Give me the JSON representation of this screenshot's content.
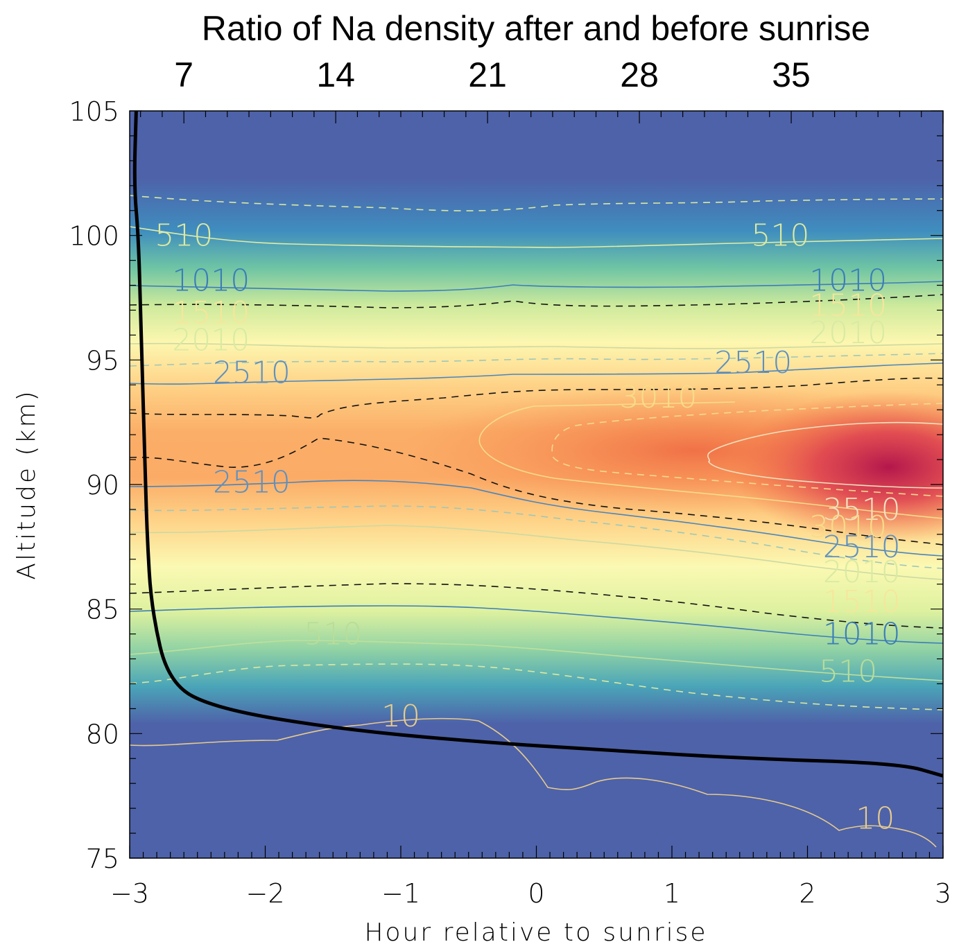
{
  "chart_data": {
    "type": "heatmap",
    "title": "Ratio of Na density after and before sunrise",
    "xlabel": "Hour relative to sunrise",
    "ylabel": "Altitude (km)",
    "xlim": [
      -3,
      3
    ],
    "ylim": [
      75,
      105
    ],
    "x_ticks": [
      "−3",
      "−2",
      "−1",
      "0",
      "1",
      "2",
      "3"
    ],
    "y_ticks": [
      "75",
      "80",
      "85",
      "90",
      "95",
      "100",
      "105"
    ],
    "top_axis_ticks": [
      "7",
      "14",
      "21",
      "28",
      "35"
    ],
    "top_axis_values": [
      7,
      14,
      21,
      28,
      35
    ],
    "colormap": "spectral (blue-green-yellow-orange-red)",
    "colors": {
      "low": "#4e62a9",
      "mid": "#fbf9b3",
      "high": "#b3174c",
      "ratio_line": "#000000"
    },
    "contour_levels": [
      10,
      510,
      1010,
      1510,
      2010,
      2510,
      3010,
      3510
    ],
    "contour_labels": [
      {
        "text": "510",
        "x": -2.6,
        "y": 100.0,
        "color": "#dde9a0"
      },
      {
        "text": "1010",
        "x": -2.4,
        "y": 98.2,
        "color": "#3b7db8"
      },
      {
        "text": "1510",
        "x": -2.4,
        "y": 96.9,
        "color": "#f6e69b"
      },
      {
        "text": "2010",
        "x": -2.4,
        "y": 95.8,
        "color": "#d9eaa3"
      },
      {
        "text": "2510",
        "x": -2.1,
        "y": 94.5,
        "color": "#5f90bf"
      },
      {
        "text": "2510",
        "x": -2.1,
        "y": 90.1,
        "color": "#5f90bf"
      },
      {
        "text": "510",
        "x": -1.5,
        "y": 84.0,
        "color": "#b8dd9a"
      },
      {
        "text": "10",
        "x": -1.0,
        "y": 80.7,
        "color": "#e8cc8d"
      },
      {
        "text": "3010",
        "x": 0.9,
        "y": 93.5,
        "color": "#f7dc8a"
      },
      {
        "text": "510",
        "x": 1.8,
        "y": 100.0,
        "color": "#dde9a0"
      },
      {
        "text": "1010",
        "x": 2.3,
        "y": 98.2,
        "color": "#3b7db8"
      },
      {
        "text": "1510",
        "x": 2.3,
        "y": 97.2,
        "color": "#f6e69b"
      },
      {
        "text": "2010",
        "x": 2.3,
        "y": 96.1,
        "color": "#d9eaa3"
      },
      {
        "text": "2510",
        "x": 1.6,
        "y": 94.9,
        "color": "#5f90bf"
      },
      {
        "text": "3510",
        "x": 2.4,
        "y": 89.0,
        "color": "#f2e3c0"
      },
      {
        "text": "3010",
        "x": 2.3,
        "y": 88.3,
        "color": "#f7dc8a"
      },
      {
        "text": "2510",
        "x": 2.4,
        "y": 87.5,
        "color": "#5f90bf"
      },
      {
        "text": "2010",
        "x": 2.4,
        "y": 86.5,
        "color": "#d9eaa3"
      },
      {
        "text": "1510",
        "x": 2.4,
        "y": 85.3,
        "color": "#f6e69b"
      },
      {
        "text": "1010",
        "x": 2.4,
        "y": 84.0,
        "color": "#3b7db8"
      },
      {
        "text": "510",
        "x": 2.3,
        "y": 82.5,
        "color": "#b8dd9a"
      },
      {
        "text": "10",
        "x": 2.5,
        "y": 76.6,
        "color": "#e8cc8d"
      }
    ],
    "density_peak": {
      "x": 2.6,
      "y": 90.7
    },
    "ratio_line": {
      "name": "Ratio of Na density after and before sunrise",
      "axis": "top",
      "ratio": [
        4.8,
        4.7,
        4.9,
        5.0,
        5.1,
        5.2,
        5.3,
        5.5,
        6.3,
        8.5,
        14.0,
        20.0,
        27.0,
        33.0,
        40.0,
        42.0
      ],
      "altitude": [
        105.0,
        102.0,
        100.0,
        97.0,
        94.0,
        91.0,
        88.0,
        85.0,
        82.0,
        81.0,
        80.2,
        79.7,
        79.3,
        79.0,
        78.8,
        78.3
      ]
    },
    "legend": "none",
    "grid": false
  }
}
